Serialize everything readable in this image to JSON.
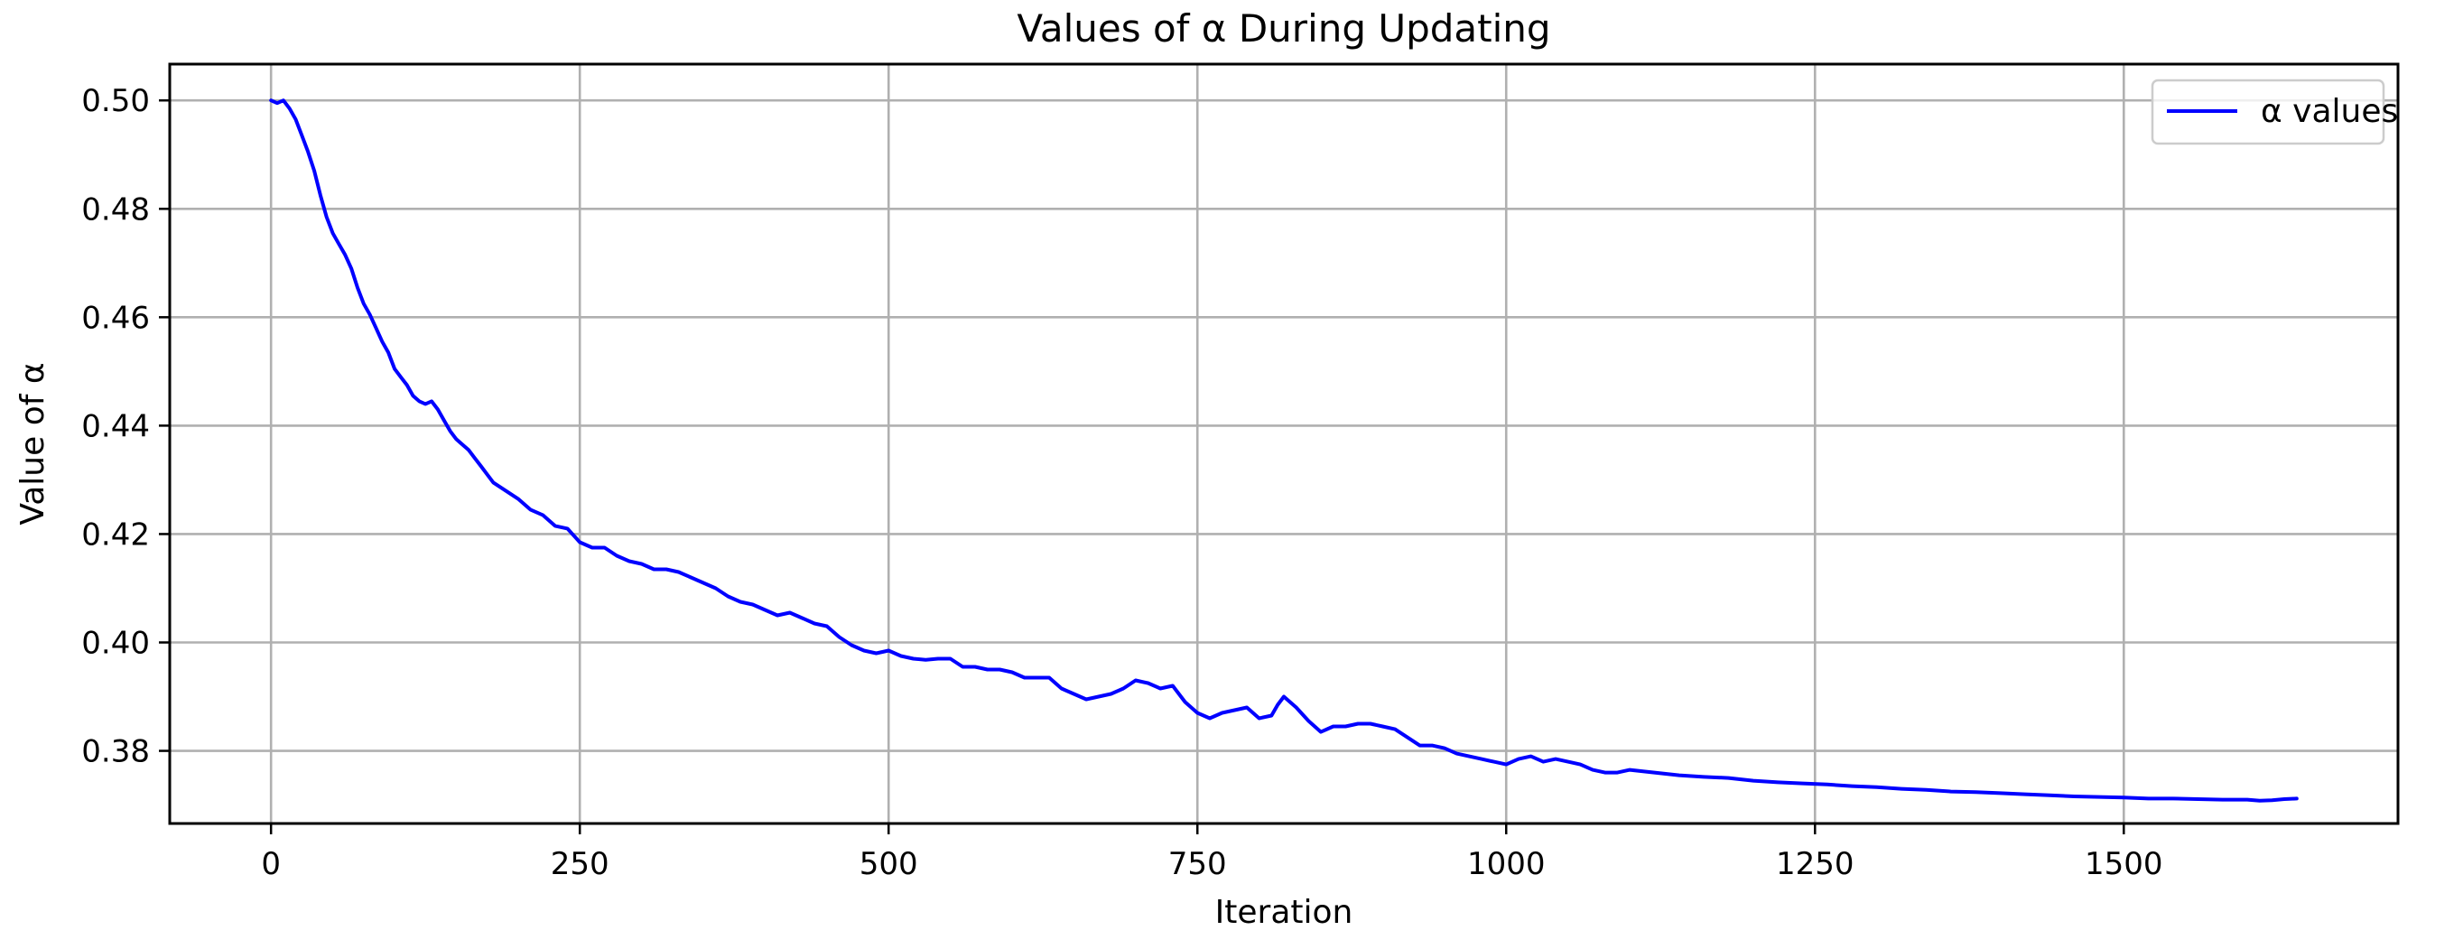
{
  "chart_data": {
    "type": "line",
    "title": "Values of α During Updating",
    "xlabel": "Iteration",
    "ylabel": "Value of α",
    "xlim": [
      -82,
      1722
    ],
    "ylim": [
      0.3666,
      0.5067
    ],
    "xticks": [
      0,
      250,
      500,
      750,
      1000,
      1250,
      1500
    ],
    "yticks": [
      0.38,
      0.4,
      0.42,
      0.44,
      0.46,
      0.48,
      0.5
    ],
    "grid": true,
    "legend_position": "top-right",
    "series": [
      {
        "name": "α values",
        "color": "#0000ff",
        "x": [
          0,
          5,
          10,
          15,
          20,
          25,
          30,
          35,
          40,
          45,
          50,
          55,
          60,
          65,
          70,
          75,
          80,
          85,
          90,
          95,
          100,
          105,
          110,
          115,
          120,
          125,
          130,
          135,
          140,
          145,
          150,
          155,
          160,
          165,
          170,
          175,
          180,
          190,
          200,
          210,
          220,
          230,
          240,
          250,
          260,
          270,
          280,
          290,
          300,
          310,
          320,
          330,
          340,
          350,
          360,
          370,
          380,
          390,
          400,
          410,
          420,
          430,
          440,
          450,
          460,
          470,
          480,
          490,
          500,
          510,
          520,
          530,
          540,
          550,
          560,
          570,
          580,
          590,
          600,
          610,
          620,
          630,
          640,
          650,
          660,
          670,
          680,
          690,
          700,
          710,
          720,
          730,
          740,
          750,
          760,
          770,
          780,
          790,
          800,
          810,
          815,
          820,
          830,
          840,
          850,
          860,
          870,
          880,
          890,
          900,
          910,
          920,
          930,
          940,
          950,
          960,
          970,
          980,
          990,
          1000,
          1010,
          1020,
          1030,
          1040,
          1050,
          1060,
          1070,
          1080,
          1090,
          1100,
          1120,
          1140,
          1160,
          1180,
          1200,
          1220,
          1240,
          1260,
          1280,
          1300,
          1320,
          1340,
          1360,
          1380,
          1400,
          1420,
          1440,
          1460,
          1480,
          1500,
          1520,
          1540,
          1560,
          1580,
          1600,
          1610,
          1620,
          1630,
          1640
        ],
        "values": [
          0.5,
          0.4995,
          0.5,
          0.4985,
          0.4965,
          0.4935,
          0.4905,
          0.487,
          0.4825,
          0.4785,
          0.4755,
          0.4735,
          0.4715,
          0.469,
          0.4655,
          0.4625,
          0.4605,
          0.458,
          0.4555,
          0.4535,
          0.4505,
          0.449,
          0.4475,
          0.4455,
          0.4445,
          0.444,
          0.4445,
          0.443,
          0.441,
          0.439,
          0.4375,
          0.4365,
          0.4355,
          0.434,
          0.4325,
          0.431,
          0.4295,
          0.428,
          0.4265,
          0.4245,
          0.4235,
          0.4215,
          0.421,
          0.4185,
          0.4175,
          0.4175,
          0.416,
          0.415,
          0.4145,
          0.4135,
          0.4135,
          0.413,
          0.412,
          0.411,
          0.41,
          0.4085,
          0.4075,
          0.407,
          0.406,
          0.405,
          0.4055,
          0.4045,
          0.4035,
          0.403,
          0.401,
          0.3995,
          0.3985,
          0.398,
          0.3985,
          0.3975,
          0.397,
          0.3968,
          0.397,
          0.397,
          0.3955,
          0.3955,
          0.395,
          0.395,
          0.3945,
          0.3935,
          0.3935,
          0.3935,
          0.3915,
          0.3905,
          0.3895,
          0.39,
          0.3905,
          0.3915,
          0.393,
          0.3925,
          0.3915,
          0.392,
          0.389,
          0.387,
          0.386,
          0.387,
          0.3875,
          0.388,
          0.386,
          0.3865,
          0.3885,
          0.39,
          0.388,
          0.3855,
          0.3835,
          0.3845,
          0.3845,
          0.385,
          0.385,
          0.3845,
          0.384,
          0.3825,
          0.381,
          0.381,
          0.3805,
          0.3795,
          0.379,
          0.3785,
          0.378,
          0.3775,
          0.3785,
          0.379,
          0.378,
          0.3785,
          0.378,
          0.3775,
          0.3765,
          0.376,
          0.376,
          0.3765,
          0.376,
          0.3755,
          0.3752,
          0.375,
          0.3745,
          0.3742,
          0.374,
          0.3738,
          0.3735,
          0.3733,
          0.373,
          0.3728,
          0.3725,
          0.3724,
          0.3722,
          0.372,
          0.3718,
          0.3716,
          0.3715,
          0.3714,
          0.3712,
          0.3712,
          0.3711,
          0.371,
          0.371,
          0.3708,
          0.3709,
          0.3711,
          0.3712
        ]
      }
    ]
  }
}
